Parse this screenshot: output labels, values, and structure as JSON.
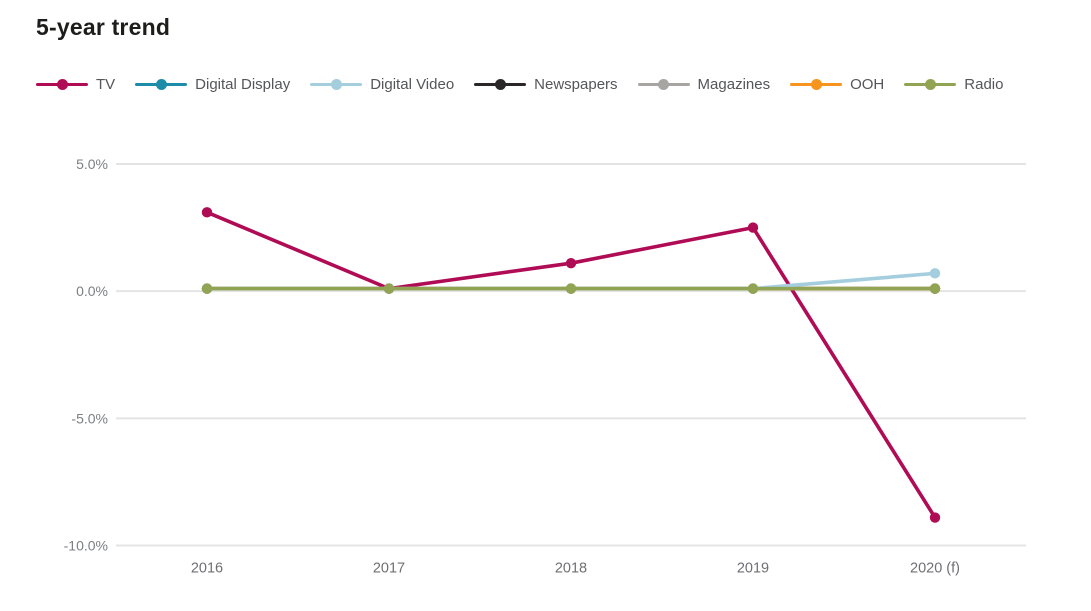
{
  "page_title": "5-year trend",
  "colors": {
    "background": "#ffffff",
    "title_text": "#1d1d1b",
    "legend_text": "#55565a",
    "axis_label_text": "#7d7f82",
    "gridline": "#e4e4e4"
  },
  "chart_data": {
    "type": "line",
    "title": "5-year trend",
    "categories": [
      "2016",
      "2017",
      "2018",
      "2019",
      "2020 (f)"
    ],
    "xlabel": "",
    "ylabel": "",
    "y_unit": "%",
    "ylim": [
      -10.5,
      5.5
    ],
    "grid": "horizontal",
    "legend_position": "top",
    "y_ticks": [
      {
        "value": 5,
        "label": "5.0%"
      },
      {
        "value": 0,
        "label": "0.0%"
      },
      {
        "value": -5,
        "label": "-5.0%"
      },
      {
        "value": -10,
        "label": "-10.0%"
      }
    ],
    "series": [
      {
        "name": "TV",
        "color": "#b00c55",
        "values": [
          3.1,
          0.1,
          1.1,
          2.5,
          -8.9
        ]
      },
      {
        "name": "Digital Display",
        "color": "#1d8ca8",
        "values": [
          0.1,
          0.1,
          0.1,
          0.1,
          0.1
        ]
      },
      {
        "name": "Digital Video",
        "color": "#a4cedd",
        "values": [
          0.1,
          0.1,
          0.1,
          0.1,
          0.7
        ]
      },
      {
        "name": "Newspapers",
        "color": "#2b2728",
        "values": [
          0.1,
          0.1,
          0.1,
          0.1,
          0.1
        ]
      },
      {
        "name": "Magazines",
        "color": "#a7a5a2",
        "values": [
          0.1,
          0.1,
          0.1,
          0.1,
          0.1
        ]
      },
      {
        "name": "OOH",
        "color": "#f7941d",
        "values": [
          0.1,
          0.1,
          0.1,
          0.1,
          0.1
        ]
      },
      {
        "name": "Radio",
        "color": "#90a454",
        "values": [
          0.1,
          0.1,
          0.1,
          0.1,
          0.1
        ]
      }
    ],
    "draw_order": [
      0,
      1,
      3,
      4,
      5,
      2,
      6
    ]
  }
}
